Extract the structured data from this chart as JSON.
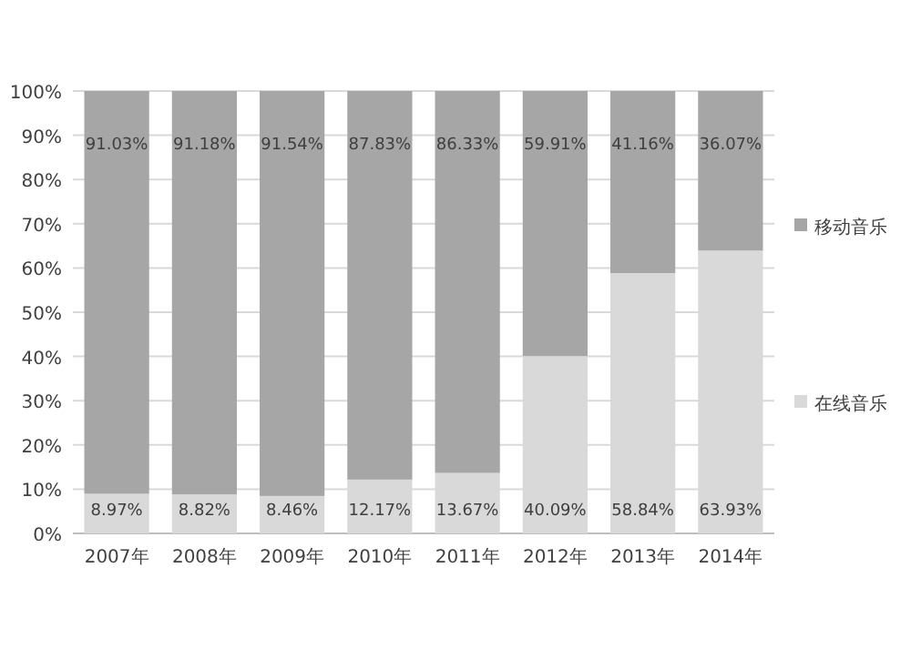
{
  "chart_data": {
    "type": "bar",
    "stacked": true,
    "categories": [
      "2007年",
      "2008年",
      "2009年",
      "2010年",
      "2011年",
      "2012年",
      "2013年",
      "2014年"
    ],
    "series": [
      {
        "name": "在线音乐",
        "color": "#d9d9d9",
        "values": [
          8.97,
          8.82,
          8.46,
          12.17,
          13.67,
          40.09,
          58.84,
          63.93
        ],
        "value_labels": [
          "8.97%",
          "8.82%",
          "8.46%",
          "12.17%",
          "13.67%",
          "40.09%",
          "58.84%",
          "63.93%"
        ]
      },
      {
        "name": "移动音乐",
        "color": "#a6a6a6",
        "values": [
          91.03,
          91.18,
          91.54,
          87.83,
          86.33,
          59.91,
          41.16,
          36.07
        ],
        "value_labels": [
          "91.03%",
          "91.18%",
          "91.54%",
          "87.83%",
          "86.33%",
          "59.91%",
          "41.16%",
          "36.07%"
        ]
      }
    ],
    "ylim": [
      0,
      100
    ],
    "yticks": [
      {
        "value": 0,
        "label": "0%"
      },
      {
        "value": 10,
        "label": "10%"
      },
      {
        "value": 20,
        "label": "20%"
      },
      {
        "value": 30,
        "label": "30%"
      },
      {
        "value": 40,
        "label": "40%"
      },
      {
        "value": 50,
        "label": "50%"
      },
      {
        "value": 60,
        "label": "60%"
      },
      {
        "value": 70,
        "label": "70%"
      },
      {
        "value": 80,
        "label": "80%"
      },
      {
        "value": 90,
        "label": "90%"
      },
      {
        "value": 100,
        "label": "100%"
      }
    ],
    "grid": "y",
    "legend": "right"
  }
}
